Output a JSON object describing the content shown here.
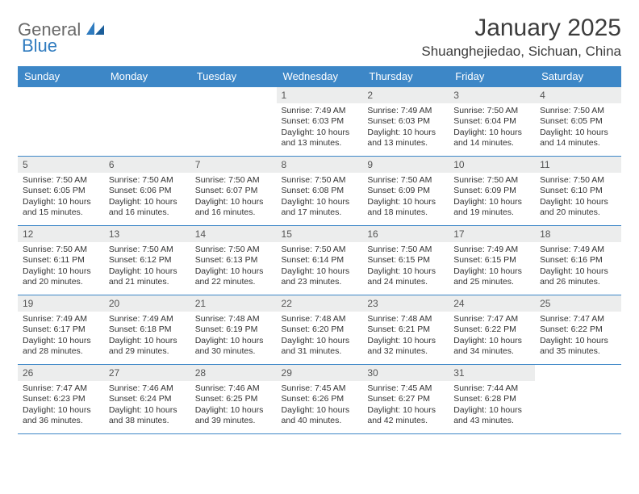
{
  "brand": {
    "part1": "General",
    "part2": "Blue"
  },
  "title": "January 2025",
  "location": "Shuanghejiedao, Sichuan, China",
  "colors": {
    "header_bg": "#3d87c7",
    "header_text": "#ffffff",
    "daynum_bg": "#eceded",
    "cell_border": "#3d87c7",
    "text": "#333333",
    "logo_grey": "#6a6a6a",
    "logo_blue": "#2f7bbf",
    "page_bg": "#ffffff"
  },
  "typography": {
    "title_fontsize": 30,
    "location_fontsize": 17,
    "dayheader_fontsize": 13,
    "daynum_fontsize": 12,
    "body_fontsize": 10.5,
    "font_family": "Arial"
  },
  "day_headers": [
    "Sunday",
    "Monday",
    "Tuesday",
    "Wednesday",
    "Thursday",
    "Friday",
    "Saturday"
  ],
  "weeks": [
    [
      null,
      null,
      null,
      {
        "n": "1",
        "sunrise": "Sunrise: 7:49 AM",
        "sunset": "Sunset: 6:03 PM",
        "daylight": "Daylight: 10 hours and 13 minutes."
      },
      {
        "n": "2",
        "sunrise": "Sunrise: 7:49 AM",
        "sunset": "Sunset: 6:03 PM",
        "daylight": "Daylight: 10 hours and 13 minutes."
      },
      {
        "n": "3",
        "sunrise": "Sunrise: 7:50 AM",
        "sunset": "Sunset: 6:04 PM",
        "daylight": "Daylight: 10 hours and 14 minutes."
      },
      {
        "n": "4",
        "sunrise": "Sunrise: 7:50 AM",
        "sunset": "Sunset: 6:05 PM",
        "daylight": "Daylight: 10 hours and 14 minutes."
      }
    ],
    [
      {
        "n": "5",
        "sunrise": "Sunrise: 7:50 AM",
        "sunset": "Sunset: 6:05 PM",
        "daylight": "Daylight: 10 hours and 15 minutes."
      },
      {
        "n": "6",
        "sunrise": "Sunrise: 7:50 AM",
        "sunset": "Sunset: 6:06 PM",
        "daylight": "Daylight: 10 hours and 16 minutes."
      },
      {
        "n": "7",
        "sunrise": "Sunrise: 7:50 AM",
        "sunset": "Sunset: 6:07 PM",
        "daylight": "Daylight: 10 hours and 16 minutes."
      },
      {
        "n": "8",
        "sunrise": "Sunrise: 7:50 AM",
        "sunset": "Sunset: 6:08 PM",
        "daylight": "Daylight: 10 hours and 17 minutes."
      },
      {
        "n": "9",
        "sunrise": "Sunrise: 7:50 AM",
        "sunset": "Sunset: 6:09 PM",
        "daylight": "Daylight: 10 hours and 18 minutes."
      },
      {
        "n": "10",
        "sunrise": "Sunrise: 7:50 AM",
        "sunset": "Sunset: 6:09 PM",
        "daylight": "Daylight: 10 hours and 19 minutes."
      },
      {
        "n": "11",
        "sunrise": "Sunrise: 7:50 AM",
        "sunset": "Sunset: 6:10 PM",
        "daylight": "Daylight: 10 hours and 20 minutes."
      }
    ],
    [
      {
        "n": "12",
        "sunrise": "Sunrise: 7:50 AM",
        "sunset": "Sunset: 6:11 PM",
        "daylight": "Daylight: 10 hours and 20 minutes."
      },
      {
        "n": "13",
        "sunrise": "Sunrise: 7:50 AM",
        "sunset": "Sunset: 6:12 PM",
        "daylight": "Daylight: 10 hours and 21 minutes."
      },
      {
        "n": "14",
        "sunrise": "Sunrise: 7:50 AM",
        "sunset": "Sunset: 6:13 PM",
        "daylight": "Daylight: 10 hours and 22 minutes."
      },
      {
        "n": "15",
        "sunrise": "Sunrise: 7:50 AM",
        "sunset": "Sunset: 6:14 PM",
        "daylight": "Daylight: 10 hours and 23 minutes."
      },
      {
        "n": "16",
        "sunrise": "Sunrise: 7:50 AM",
        "sunset": "Sunset: 6:15 PM",
        "daylight": "Daylight: 10 hours and 24 minutes."
      },
      {
        "n": "17",
        "sunrise": "Sunrise: 7:49 AM",
        "sunset": "Sunset: 6:15 PM",
        "daylight": "Daylight: 10 hours and 25 minutes."
      },
      {
        "n": "18",
        "sunrise": "Sunrise: 7:49 AM",
        "sunset": "Sunset: 6:16 PM",
        "daylight": "Daylight: 10 hours and 26 minutes."
      }
    ],
    [
      {
        "n": "19",
        "sunrise": "Sunrise: 7:49 AM",
        "sunset": "Sunset: 6:17 PM",
        "daylight": "Daylight: 10 hours and 28 minutes."
      },
      {
        "n": "20",
        "sunrise": "Sunrise: 7:49 AM",
        "sunset": "Sunset: 6:18 PM",
        "daylight": "Daylight: 10 hours and 29 minutes."
      },
      {
        "n": "21",
        "sunrise": "Sunrise: 7:48 AM",
        "sunset": "Sunset: 6:19 PM",
        "daylight": "Daylight: 10 hours and 30 minutes."
      },
      {
        "n": "22",
        "sunrise": "Sunrise: 7:48 AM",
        "sunset": "Sunset: 6:20 PM",
        "daylight": "Daylight: 10 hours and 31 minutes."
      },
      {
        "n": "23",
        "sunrise": "Sunrise: 7:48 AM",
        "sunset": "Sunset: 6:21 PM",
        "daylight": "Daylight: 10 hours and 32 minutes."
      },
      {
        "n": "24",
        "sunrise": "Sunrise: 7:47 AM",
        "sunset": "Sunset: 6:22 PM",
        "daylight": "Daylight: 10 hours and 34 minutes."
      },
      {
        "n": "25",
        "sunrise": "Sunrise: 7:47 AM",
        "sunset": "Sunset: 6:22 PM",
        "daylight": "Daylight: 10 hours and 35 minutes."
      }
    ],
    [
      {
        "n": "26",
        "sunrise": "Sunrise: 7:47 AM",
        "sunset": "Sunset: 6:23 PM",
        "daylight": "Daylight: 10 hours and 36 minutes."
      },
      {
        "n": "27",
        "sunrise": "Sunrise: 7:46 AM",
        "sunset": "Sunset: 6:24 PM",
        "daylight": "Daylight: 10 hours and 38 minutes."
      },
      {
        "n": "28",
        "sunrise": "Sunrise: 7:46 AM",
        "sunset": "Sunset: 6:25 PM",
        "daylight": "Daylight: 10 hours and 39 minutes."
      },
      {
        "n": "29",
        "sunrise": "Sunrise: 7:45 AM",
        "sunset": "Sunset: 6:26 PM",
        "daylight": "Daylight: 10 hours and 40 minutes."
      },
      {
        "n": "30",
        "sunrise": "Sunrise: 7:45 AM",
        "sunset": "Sunset: 6:27 PM",
        "daylight": "Daylight: 10 hours and 42 minutes."
      },
      {
        "n": "31",
        "sunrise": "Sunrise: 7:44 AM",
        "sunset": "Sunset: 6:28 PM",
        "daylight": "Daylight: 10 hours and 43 minutes."
      },
      null
    ]
  ]
}
